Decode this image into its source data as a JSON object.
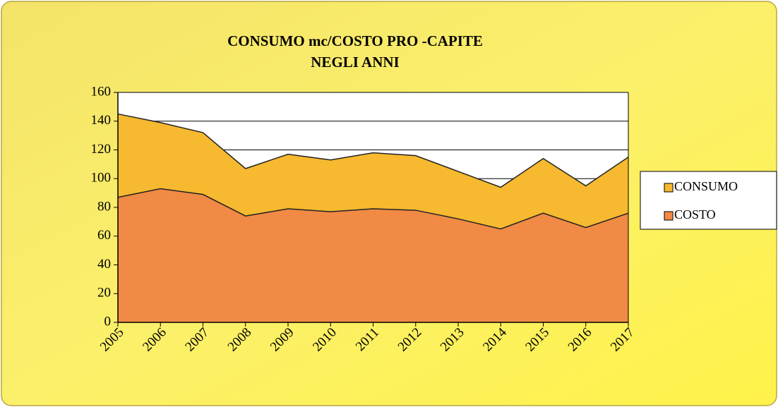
{
  "chart_data": {
    "type": "area",
    "title": [
      "CONSUMO mc/COSTO PRO -CAPITE",
      "NEGLI ANNI"
    ],
    "categories": [
      "2005",
      "2006",
      "2007",
      "2008",
      "2009",
      "2010",
      "2011",
      "2012",
      "2013",
      "2014",
      "2015",
      "2016",
      "2017"
    ],
    "series": [
      {
        "name": "CONSUMO",
        "color": "#f6b92f",
        "values": [
          145,
          139,
          132,
          107,
          117,
          113,
          118,
          116,
          105,
          94,
          114,
          95,
          115
        ]
      },
      {
        "name": "COSTO",
        "color": "#f08a45",
        "values": [
          87,
          93,
          89,
          74,
          79,
          77,
          79,
          78,
          72,
          65,
          76,
          66,
          76
        ]
      }
    ],
    "ylim": [
      0,
      160
    ],
    "yticks": [
      0,
      20,
      40,
      60,
      80,
      100,
      120,
      140,
      160
    ],
    "grid": true
  }
}
